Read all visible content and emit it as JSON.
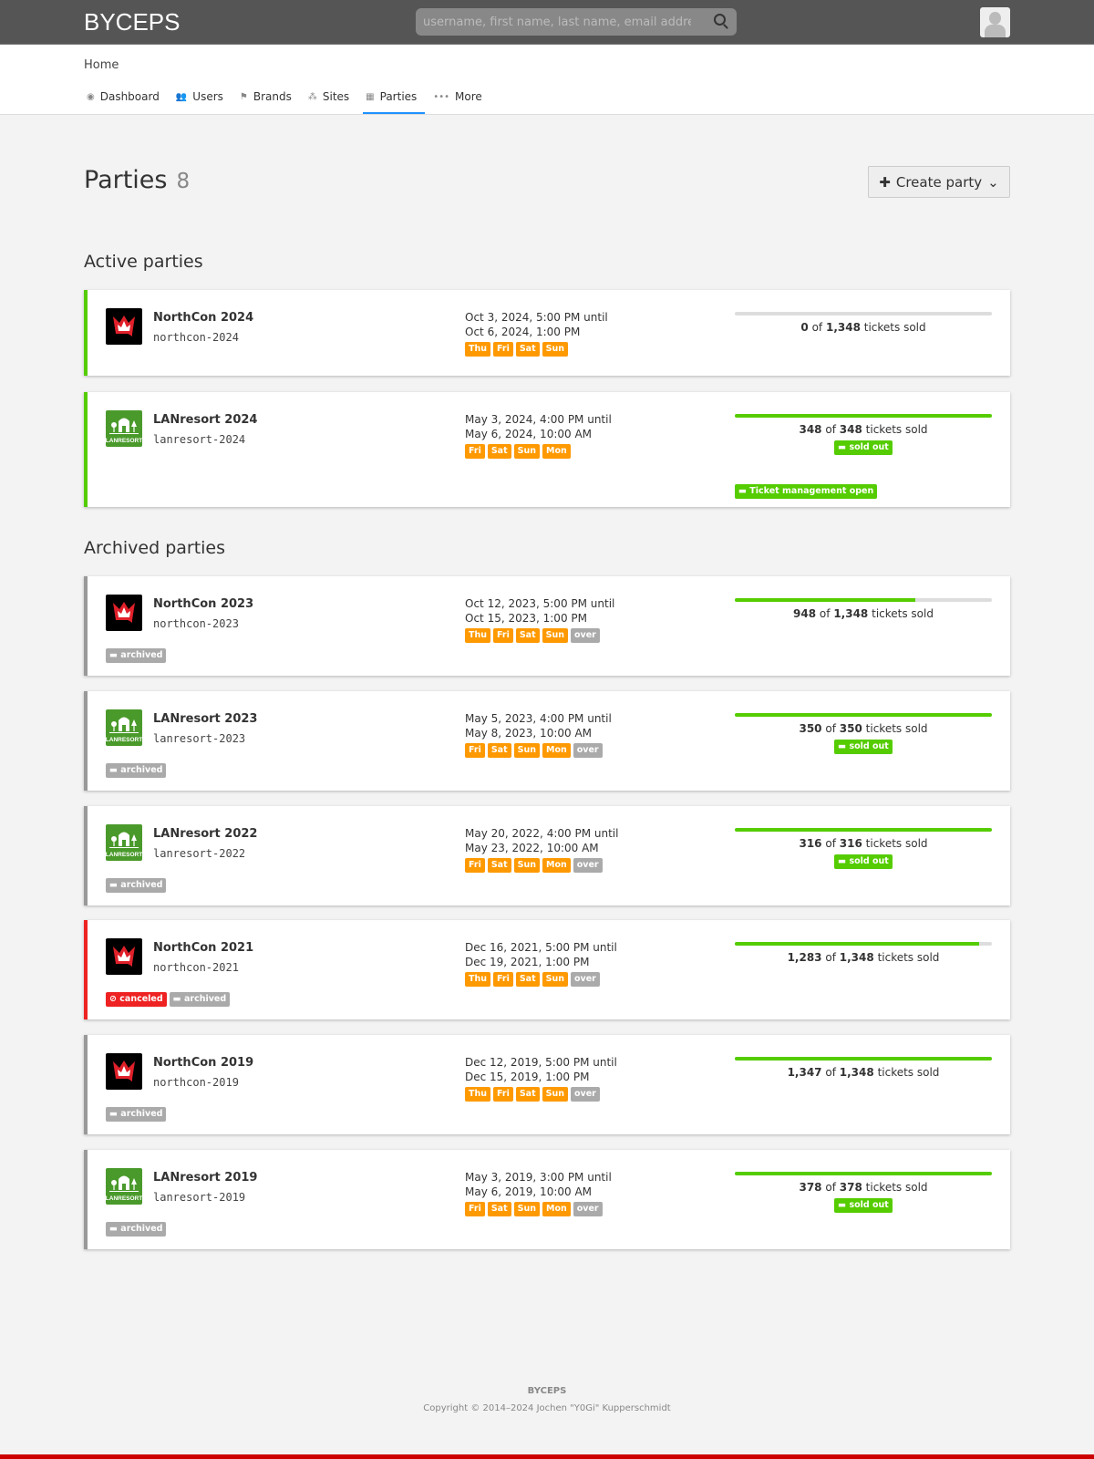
{
  "header": {
    "brand": "BYCEPS",
    "search_placeholder": "username, first name, last name, email address"
  },
  "breadcrumb": "Home",
  "nav": [
    {
      "label": "Dashboard",
      "icon": "dashboard-icon",
      "glyph": "◉"
    },
    {
      "label": "Users",
      "icon": "users-icon",
      "glyph": "👥"
    },
    {
      "label": "Brands",
      "icon": "flag-icon",
      "glyph": "⚑"
    },
    {
      "label": "Sites",
      "icon": "sitemap-icon",
      "glyph": "⁂"
    },
    {
      "label": "Parties",
      "icon": "calendar-icon",
      "glyph": "▦",
      "active": true
    },
    {
      "label": "More",
      "icon": "more-icon",
      "glyph": "•••"
    }
  ],
  "page": {
    "title": "Parties",
    "count": "8",
    "create_label": "Create party"
  },
  "sections": {
    "active": "Active parties",
    "archived": "Archived parties"
  },
  "colors": {
    "active": "#55cc00",
    "archived": "#999999",
    "canceled": "#ee2222",
    "day": "#ff9900",
    "progress": "#55cc00"
  },
  "labels": {
    "of": "of",
    "tickets_sold": "tickets sold",
    "sold_out": "sold out",
    "archived": "archived",
    "canceled": "canceled",
    "over": "over",
    "ticket_mgmt": "Ticket management open"
  },
  "active_parties": [
    {
      "name": "NorthCon 2024",
      "id": "northcon-2024",
      "logo": "northcon",
      "start": "Oct 3, 2024, 5:00 PM until",
      "end": "Oct 6, 2024, 1:00 PM",
      "days": [
        "Thu",
        "Fri",
        "Sat",
        "Sun"
      ],
      "sold": "0",
      "total": "1,348",
      "fraction": 0,
      "sold_out": false,
      "ticket_mgmt": false
    },
    {
      "name": "LANresort 2024",
      "id": "lanresort-2024",
      "logo": "lanresort",
      "start": "May 3, 2024, 4:00 PM until",
      "end": "May 6, 2024, 10:00 AM",
      "days": [
        "Fri",
        "Sat",
        "Sun",
        "Mon"
      ],
      "sold": "348",
      "total": "348",
      "fraction": 1,
      "sold_out": true,
      "ticket_mgmt": true
    }
  ],
  "archived_parties": [
    {
      "name": "NorthCon 2023",
      "id": "northcon-2023",
      "logo": "northcon",
      "start": "Oct 12, 2023, 5:00 PM until",
      "end": "Oct 15, 2023, 1:00 PM",
      "days": [
        "Thu",
        "Fri",
        "Sat",
        "Sun"
      ],
      "sold": "948",
      "total": "1,348",
      "fraction": 0.703,
      "sold_out": false,
      "canceled": false
    },
    {
      "name": "LANresort 2023",
      "id": "lanresort-2023",
      "logo": "lanresort",
      "start": "May 5, 2023, 4:00 PM until",
      "end": "May 8, 2023, 10:00 AM",
      "days": [
        "Fri",
        "Sat",
        "Sun",
        "Mon"
      ],
      "sold": "350",
      "total": "350",
      "fraction": 1,
      "sold_out": true,
      "canceled": false
    },
    {
      "name": "LANresort 2022",
      "id": "lanresort-2022",
      "logo": "lanresort",
      "start": "May 20, 2022, 4:00 PM until",
      "end": "May 23, 2022, 10:00 AM",
      "days": [
        "Fri",
        "Sat",
        "Sun",
        "Mon"
      ],
      "sold": "316",
      "total": "316",
      "fraction": 1,
      "sold_out": true,
      "canceled": false
    },
    {
      "name": "NorthCon 2021",
      "id": "northcon-2021",
      "logo": "northcon",
      "start": "Dec 16, 2021, 5:00 PM until",
      "end": "Dec 19, 2021, 1:00 PM",
      "days": [
        "Thu",
        "Fri",
        "Sat",
        "Sun"
      ],
      "sold": "1,283",
      "total": "1,348",
      "fraction": 0.952,
      "sold_out": false,
      "canceled": true
    },
    {
      "name": "NorthCon 2019",
      "id": "northcon-2019",
      "logo": "northcon",
      "start": "Dec 12, 2019, 5:00 PM until",
      "end": "Dec 15, 2019, 1:00 PM",
      "days": [
        "Thu",
        "Fri",
        "Sat",
        "Sun"
      ],
      "sold": "1,347",
      "total": "1,348",
      "fraction": 0.999,
      "sold_out": false,
      "canceled": false
    },
    {
      "name": "LANresort 2019",
      "id": "lanresort-2019",
      "logo": "lanresort",
      "start": "May 3, 2019, 3:00 PM until",
      "end": "May 6, 2019, 10:00 AM",
      "days": [
        "Fri",
        "Sat",
        "Sun",
        "Mon"
      ],
      "sold": "378",
      "total": "378",
      "fraction": 1,
      "sold_out": true,
      "canceled": false
    }
  ],
  "footer": {
    "brand": "BYCEPS",
    "copyright": "Copyright © 2014–2024 Jochen \"Y0Gi\" Kupperschmidt"
  }
}
